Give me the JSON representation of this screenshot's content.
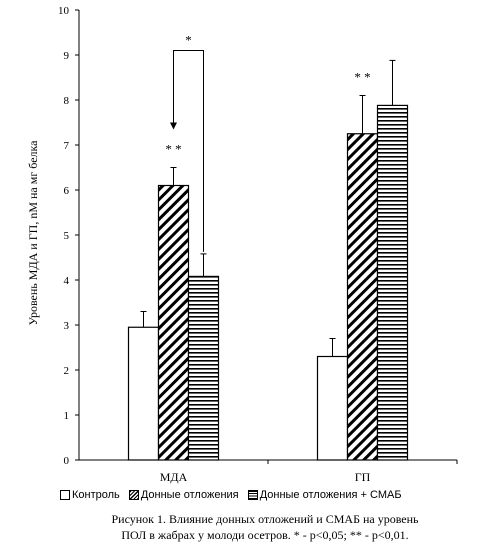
{
  "chart_data": {
    "type": "bar",
    "categories": [
      "МДА",
      "ГП"
    ],
    "series": [
      {
        "name": "Контроль",
        "values": [
          2.95,
          2.3
        ],
        "errors": [
          0.35,
          0.4
        ],
        "pattern": "none"
      },
      {
        "name": "Донные отложения",
        "values": [
          6.1,
          7.25
        ],
        "errors": [
          0.4,
          0.85
        ],
        "pattern": "diagonal"
      },
      {
        "name": "Донные отложения + СМАБ",
        "values": [
          4.08,
          7.88
        ],
        "errors": [
          0.5,
          1.0
        ],
        "pattern": "horizontal"
      }
    ],
    "xlabel": "",
    "ylabel": "Уровень МДА и ГП, nM на мг белка",
    "ylim": [
      0,
      10
    ],
    "yticks": [
      "0",
      "1",
      "2",
      "3",
      "4",
      "5",
      "6",
      "7",
      "8",
      "9",
      "10"
    ],
    "grid": false,
    "legend_position": "bottom",
    "annotations": {
      "stars": [
        {
          "category": 0,
          "series": 1,
          "text": "* *"
        },
        {
          "category": 1,
          "series": 1,
          "text": "* *"
        }
      ],
      "bracket": {
        "category": 0,
        "from_series": 2,
        "to_series": 1,
        "text": "*"
      }
    },
    "caption": [
      "Рисунок 1. Влияние донных отложений и СМАБ на уровень",
      "ПОЛ в жабрах у молоди осетров. * - p<0,05; ** - p<0,01."
    ]
  }
}
